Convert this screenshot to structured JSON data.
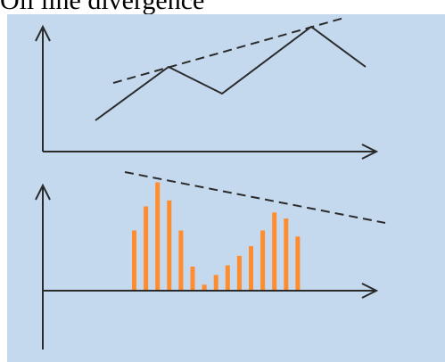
{
  "title": "Oil line divergence",
  "colors": {
    "panel_background": "#c5d9ee",
    "line": "#2b2b2b",
    "bars": "#ff8c2e",
    "page_background": "#ffffff"
  },
  "chart_data": [
    {
      "type": "line",
      "panel": "price",
      "series": [
        {
          "values": [
            0,
            4,
            2,
            7,
            4
          ]
        }
      ],
      "trendline": {
        "style": "dashed",
        "direction": "up",
        "connects": "peaks"
      },
      "grid": false,
      "axis_arrows": true
    },
    {
      "type": "bar",
      "panel": "oscillator",
      "values": [
        5,
        7,
        9,
        7.5,
        5,
        2,
        0.5,
        1.3,
        2.1,
        2.9,
        3.7,
        5,
        6.5,
        6,
        4.5
      ],
      "trendline": {
        "style": "dashed",
        "direction": "down",
        "connects": "peaks"
      },
      "grid": false,
      "axis_arrows": true
    }
  ]
}
